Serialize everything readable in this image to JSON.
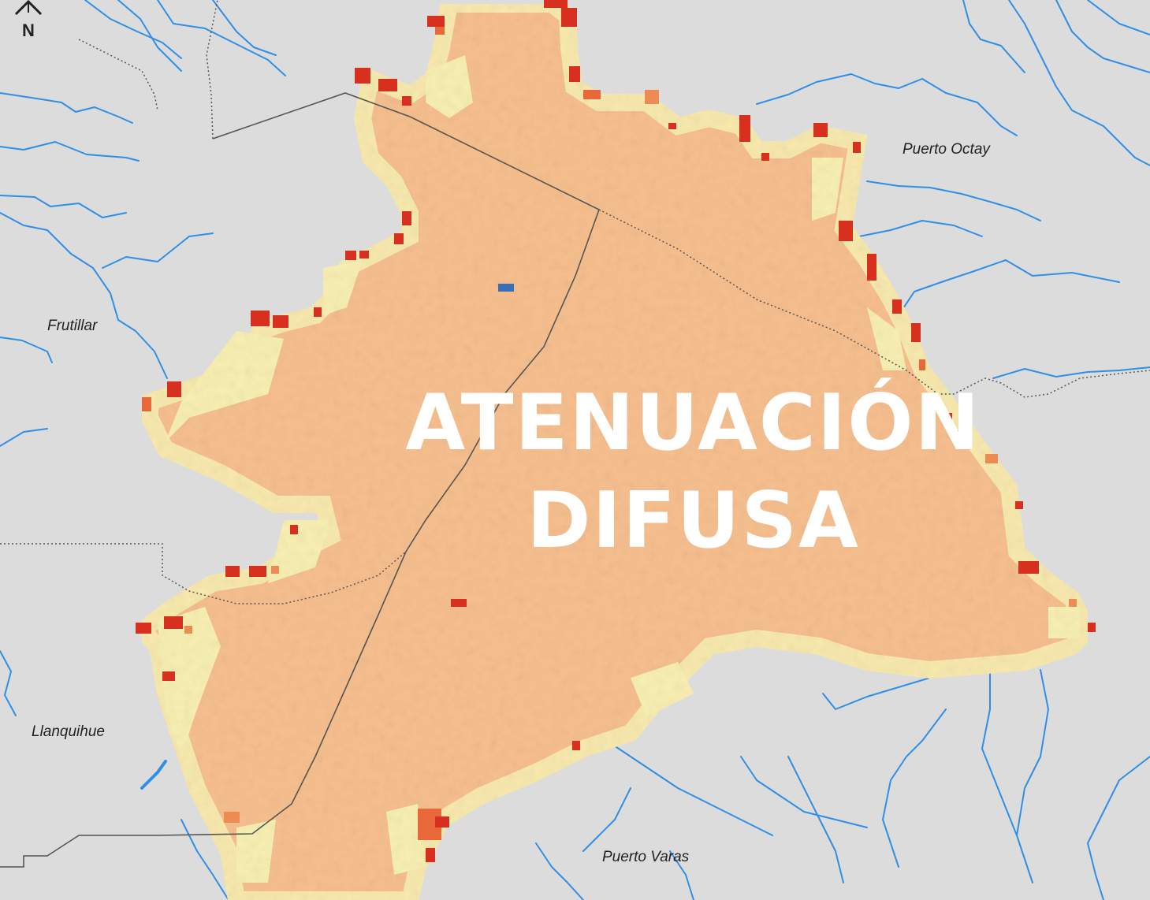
{
  "overlay": {
    "line1": "ATENUACIÓN",
    "line2": "DIFUSA"
  },
  "north_arrow": {
    "label": "N",
    "icon": "north-arrow-icon"
  },
  "places": {
    "puerto_octay": "Puerto Octay",
    "frutillar": "Frutillar",
    "llanquihue": "Llanquihue",
    "puerto_varas": "Puerto Varas"
  },
  "colors": {
    "background": "#dcdcdc",
    "river": "#2f8fe6",
    "zone_fill": "#f7bf8f",
    "edge_light": "#f6f0b4",
    "edge_hot": "#d7301f",
    "anomaly_low": "#3a6fb5",
    "boundary": "#555555"
  }
}
